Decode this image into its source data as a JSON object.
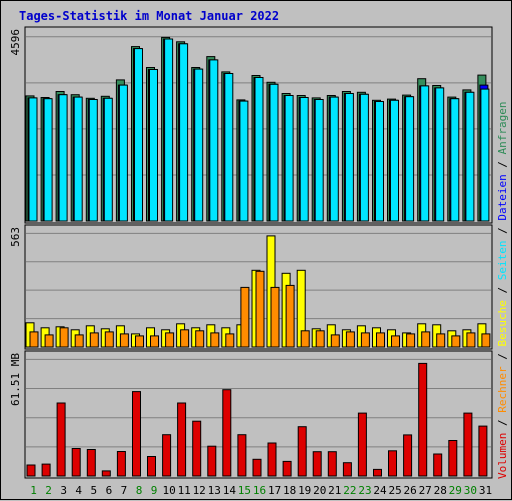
{
  "chart_data": {
    "type": "bar",
    "title": "Tages-Statistik im Monat Januar 2022",
    "categories": [
      "1",
      "2",
      "3",
      "4",
      "5",
      "6",
      "7",
      "8",
      "9",
      "10",
      "11",
      "12",
      "13",
      "14",
      "15",
      "16",
      "17",
      "18",
      "19",
      "20",
      "21",
      "22",
      "23",
      "24",
      "25",
      "26",
      "27",
      "28",
      "29",
      "30",
      "31"
    ],
    "weekend_days": [
      "1",
      "2",
      "8",
      "9",
      "15",
      "16",
      "22",
      "23",
      "29",
      "30"
    ],
    "colors": {
      "anfragen": "#2e8b57",
      "dateien": "#0000ff",
      "seiten": "#00e5ff",
      "besuche": "#ffff00",
      "rechner": "#ff8c00",
      "volumen": "#dd0000",
      "weekday_label": "#000000",
      "weekend_label": "#008000",
      "title": "#0000cc",
      "grid": "#808080",
      "panel_bg": "#c0c0c0"
    },
    "panels": [
      {
        "name": "top",
        "ymax_label": "4596",
        "ymax": 4596,
        "series": [
          {
            "name": "Anfragen",
            "values": [
              3120,
              3080,
              3230,
              3150,
              3060,
              3110,
              3520,
              4350,
              3830,
              4580,
              4470,
              3830,
              4100,
              3720,
              3020,
              3630,
              3460,
              3180,
              3130,
              3070,
              3130,
              3230,
              3210,
              3010,
              3040,
              3140,
              3550,
              3380,
              3090,
              3270,
              3640
            ]
          },
          {
            "name": "Dateien",
            "values": [
              3070,
              3050,
              3150,
              3090,
              3030,
              3060,
              3390,
              4300,
              3780,
              4540,
              4420,
              3790,
              4020,
              3680,
              2990,
              3580,
              3410,
              3130,
              3080,
              3030,
              3090,
              3180,
              3160,
              2980,
              3010,
              3100,
              3370,
              3320,
              3050,
              3210,
              3390
            ]
          },
          {
            "name": "Seiten",
            "values": [
              3070,
              3050,
              3150,
              3090,
              3030,
              3060,
              3390,
              4300,
              3780,
              4540,
              4420,
              3790,
              4020,
              3680,
              2990,
              3580,
              3410,
              3130,
              3080,
              3030,
              3090,
              3180,
              3160,
              2980,
              3010,
              3100,
              3370,
              3320,
              3050,
              3210,
              3290
            ]
          }
        ]
      },
      {
        "name": "middle",
        "ymax_label": "563",
        "ymax": 563,
        "series": [
          {
            "name": "Besuche",
            "values": [
              120,
              95,
              100,
              85,
              105,
              90,
              105,
              65,
              95,
              85,
              115,
              95,
              110,
              95,
              110,
              380,
              550,
              365,
              380,
              90,
              110,
              85,
              105,
              95,
              85,
              70,
              115,
              110,
              80,
              85,
              115
            ]
          },
          {
            "name": "Rechner",
            "values": [
              75,
              60,
              95,
              60,
              70,
              75,
              65,
              55,
              55,
              70,
              85,
              80,
              70,
              65,
              295,
              375,
              295,
              305,
              80,
              80,
              60,
              75,
              70,
              70,
              55,
              65,
              75,
              65,
              55,
              70,
              65
            ]
          }
        ]
      },
      {
        "name": "bottom",
        "ymax_label": "61.51 MB",
        "ymax": 61.51,
        "series": [
          {
            "name": "Volumen",
            "values": [
              5.8,
              6.3,
              38.5,
              14.5,
              14.0,
              2.7,
              12.9,
              44.5,
              10.3,
              21.8,
              38.5,
              28.9,
              15.7,
              45.5,
              21.8,
              8.8,
              17.4,
              7.7,
              26.0,
              12.8,
              12.8,
              7.0,
              33.2,
              3.5,
              13.3,
              21.7,
              59.4,
              11.6,
              18.7,
              33.2,
              26.3
            ]
          }
        ]
      }
    ],
    "legend_right": [
      {
        "label": "Volumen",
        "color_key": "volumen"
      },
      {
        "label": " / ",
        "color_key": "weekday_label"
      },
      {
        "label": "Rechner",
        "color_key": "rechner"
      },
      {
        "label": " / ",
        "color_key": "weekday_label"
      },
      {
        "label": "Besuche",
        "color_key": "besuche"
      },
      {
        "label": " / ",
        "color_key": "weekday_label"
      },
      {
        "label": "Seiten",
        "color_key": "seiten"
      },
      {
        "label": " / ",
        "color_key": "weekday_label"
      },
      {
        "label": "Dateien",
        "color_key": "dateien"
      },
      {
        "label": " / ",
        "color_key": "weekday_label"
      },
      {
        "label": "Anfragen",
        "color_key": "anfragen"
      }
    ]
  }
}
